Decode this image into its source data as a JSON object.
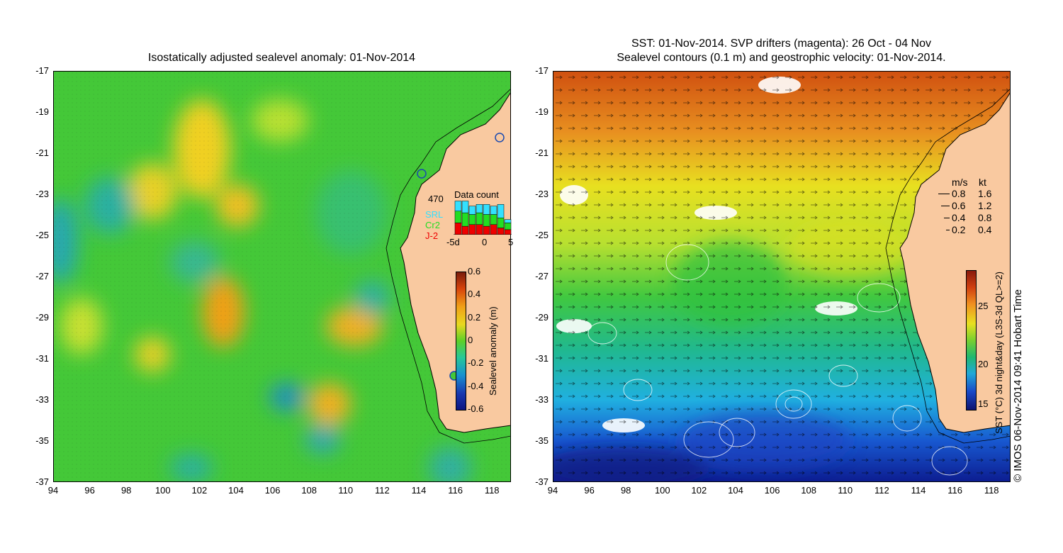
{
  "left_panel": {
    "title": "Isostatically adjusted sealevel anomaly: 01-Nov-2014",
    "lat_ticks": [
      "-17",
      "-19",
      "-21",
      "-23",
      "-25",
      "-27",
      "-29",
      "-31",
      "-33",
      "-35",
      "-37"
    ],
    "lon_ticks": [
      "94",
      "96",
      "98",
      "100",
      "102",
      "104",
      "106",
      "108",
      "110",
      "112",
      "114",
      "116",
      "118"
    ],
    "colorbar": {
      "label": "Sealevel anomaly (m)",
      "ticks": [
        "0.6",
        "0.4",
        "0.2",
        "0",
        "-0.2",
        "-0.4",
        "-0.6"
      ]
    },
    "data_count": {
      "title": "Data count",
      "max": "470",
      "legend": [
        {
          "name": "SRL",
          "color": "#33e0ff"
        },
        {
          "name": "Cr2",
          "color": "#22dd22"
        },
        {
          "name": "J-2",
          "color": "#ee0000"
        }
      ],
      "x_ticks": [
        "-5d",
        "0",
        "5"
      ]
    }
  },
  "right_panel": {
    "title_line1": "SST: 01-Nov-2014. SVP drifters (magenta): 26 Oct - 04 Nov",
    "title_line2": "Sealevel contours (0.1 m) and geostrophic velocity: 01-Nov-2014.",
    "lat_ticks": [
      "-17",
      "-19",
      "-21",
      "-23",
      "-25",
      "-27",
      "-29",
      "-31",
      "-33",
      "-35",
      "-37"
    ],
    "lon_ticks": [
      "94",
      "96",
      "98",
      "100",
      "102",
      "104",
      "106",
      "108",
      "110",
      "112",
      "114",
      "116",
      "118"
    ],
    "velocity_legend": {
      "header_ms": "m/s",
      "header_kt": "kt",
      "rows": [
        {
          "ms": "0.8",
          "kt": "1.6"
        },
        {
          "ms": "0.6",
          "kt": "1.2"
        },
        {
          "ms": "0.4",
          "kt": "0.8"
        },
        {
          "ms": "0.2",
          "kt": "0.4"
        }
      ]
    },
    "colorbar": {
      "label": "SST (°C) 3d night&day (L3S-3d QL>=2)",
      "ticks": [
        "25",
        "20",
        "15"
      ]
    }
  },
  "credit": "© IMOS 06-Nov-2014 09:41 Hobart Time",
  "colors": {
    "land": "#f9c9a0",
    "frame": "#000000"
  }
}
